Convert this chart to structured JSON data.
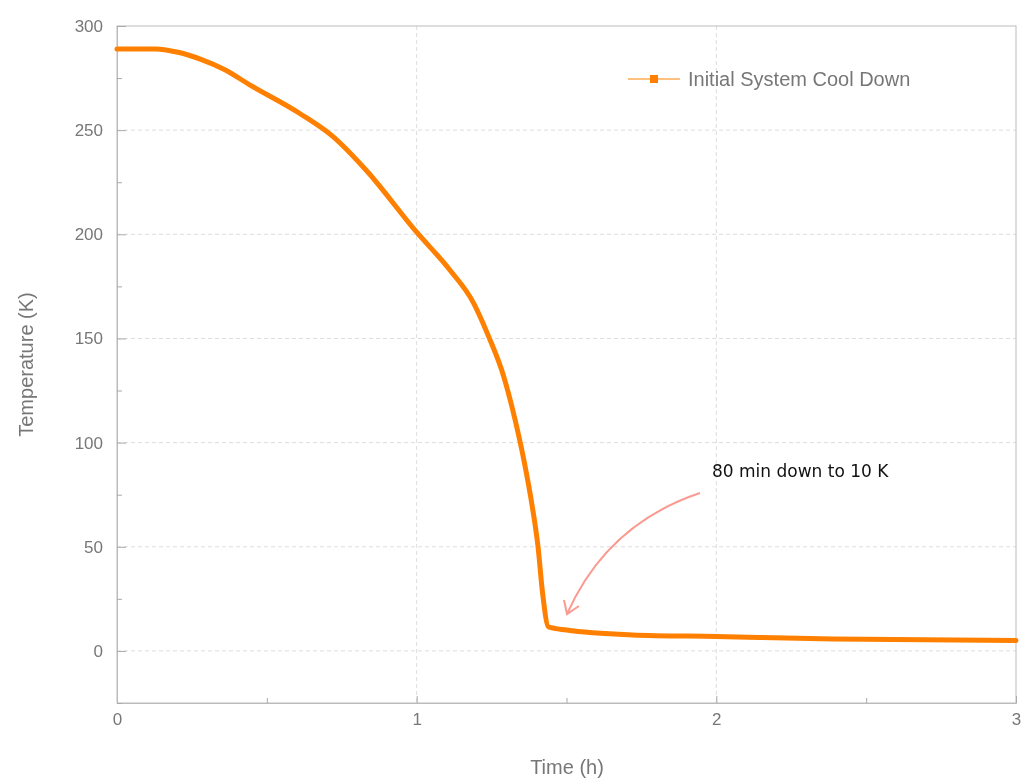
{
  "chart_data": {
    "type": "line",
    "xlabel": "Time (h)",
    "ylabel": "Temperature (K)",
    "xlim": [
      0,
      3
    ],
    "ylim": [
      -25,
      300
    ],
    "xticks": [
      0,
      {
        "value": 0.5,
        "label": null
      },
      1,
      {
        "value": 1.5,
        "label": null
      },
      2,
      {
        "value": 2.5,
        "label": null
      },
      3
    ],
    "yticks": [
      {
        "value": -25,
        "label": null
      },
      0,
      {
        "value": 25,
        "label": null
      },
      50,
      {
        "value": 75,
        "label": null
      },
      100,
      {
        "value": 125,
        "label": null
      },
      150,
      {
        "value": 175,
        "label": null
      },
      200,
      {
        "value": 225,
        "label": null
      },
      250,
      {
        "value": 275,
        "label": null
      },
      300
    ],
    "grid": true,
    "legend": "top right",
    "line_style": "solid",
    "series": [
      {
        "name": "Initial System Cool Down",
        "color": "#ff8000",
        "x": [
          0,
          0.13,
          0.2,
          0.28,
          0.36,
          0.44,
          0.61,
          0.72,
          0.83,
          1.0,
          1.11,
          1.19,
          1.24,
          1.29,
          1.33,
          1.36,
          1.385,
          1.405,
          1.42,
          1.44,
          1.5,
          1.72,
          2.0,
          2.39,
          3.0
        ],
        "values": [
          289,
          289,
          287.5,
          284,
          279,
          272,
          258,
          247,
          231,
          201,
          183,
          167,
          151,
          132,
          110,
          90,
          70,
          50,
          28,
          11.5,
          10,
          7.7,
          6.9,
          5.7,
          5
        ]
      }
    ],
    "annotations": [
      "80 min down to 10 K"
    ]
  }
}
